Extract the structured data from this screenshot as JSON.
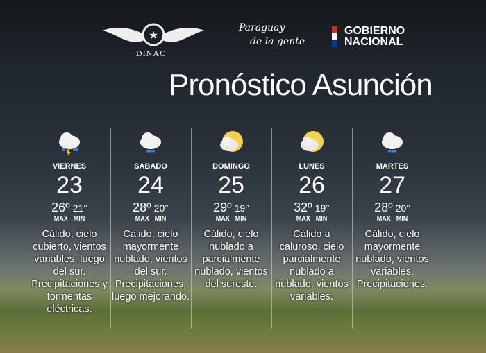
{
  "header": {
    "logo_dinac": "DINAC",
    "slogan_line1": "Paraguay",
    "slogan_line2": "de la gente",
    "gobierno_line1": "GOBIERNO",
    "gobierno_line2": "NACIONAL",
    "title": "Pronóstico Asunción"
  },
  "labels": {
    "max": "MAX",
    "min": "MIN"
  },
  "days": [
    {
      "name": "VIERNES",
      "date": "23",
      "max": "26º",
      "min": "21°",
      "icon": "cloud-rain-lightning-icon",
      "desc": "Cálido, cielo cubierto, vientos variables, luego del sur. Precipitaciones y tormentas eléctricas."
    },
    {
      "name": "SABADO",
      "date": "24",
      "max": "28º",
      "min": "20°",
      "icon": "cloud-rain-icon",
      "desc": "Cálido, cielo mayormente nublado, vientos del sur. Precipitaciones, luego mejorando."
    },
    {
      "name": "DOMINGO",
      "date": "25",
      "max": "29º",
      "min": "19°",
      "icon": "partly-cloudy-icon",
      "desc": "Cálido, cielo nublado a parcialmente nublado, vientos del sureste."
    },
    {
      "name": "LUNES",
      "date": "26",
      "max": "32º",
      "min": "19°",
      "icon": "partly-cloudy-icon",
      "desc": "Cálido a caluroso, cielo parcialmente nublado a nublado, vientos variables."
    },
    {
      "name": "MARTES",
      "date": "27",
      "max": "28º",
      "min": "20°",
      "icon": "cloud-rain-icon",
      "desc": "Cálido, cielo mayormente nublado, vientos variables. Precipitaciones."
    }
  ]
}
